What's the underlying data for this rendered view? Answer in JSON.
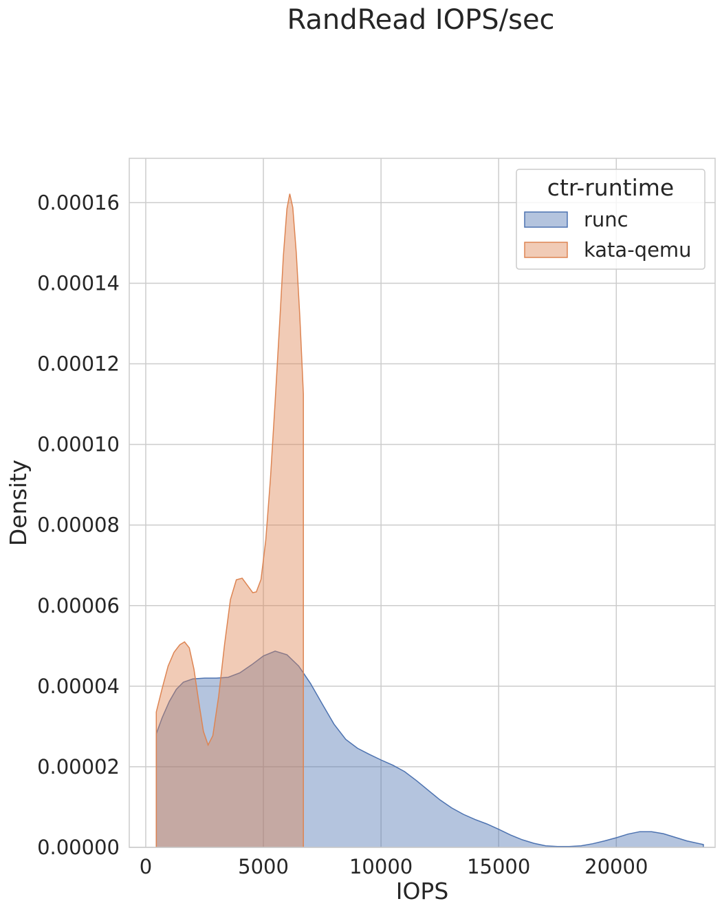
{
  "chart_data": {
    "type": "area",
    "title": "RandRead IOPS/sec",
    "xlabel": "IOPS",
    "ylabel": "Density",
    "xlim": [
      -700,
      24200
    ],
    "ylim": [
      0,
      0.000171
    ],
    "grid": true,
    "legend_placement": "top-right",
    "x_ticks": [
      0,
      5000,
      10000,
      15000,
      20000
    ],
    "x_tick_labels": [
      "0",
      "5000",
      "10000",
      "15000",
      "20000"
    ],
    "y_ticks": [
      0,
      2e-05,
      4e-05,
      6e-05,
      8e-05,
      0.0001,
      0.00012,
      0.00014,
      0.00016
    ],
    "y_tick_labels": [
      "0.00000",
      "0.00002",
      "0.00004",
      "0.00006",
      "0.00008",
      "0.00010",
      "0.00012",
      "0.00014",
      "0.00016"
    ],
    "legend": {
      "title": "ctr-runtime"
    },
    "series": [
      {
        "name": "runc",
        "color": "#4c72b0",
        "points": [
          [
            450,
            0
          ],
          [
            450,
            2.82e-05
          ],
          [
            700,
            3.22e-05
          ],
          [
            1000,
            3.62e-05
          ],
          [
            1300,
            3.92e-05
          ],
          [
            1600,
            4.1e-05
          ],
          [
            2000,
            4.18e-05
          ],
          [
            2500,
            4.2e-05
          ],
          [
            3000,
            4.2e-05
          ],
          [
            3500,
            4.22e-05
          ],
          [
            4000,
            4.33e-05
          ],
          [
            4500,
            4.53e-05
          ],
          [
            5000,
            4.75e-05
          ],
          [
            5500,
            4.87e-05
          ],
          [
            6000,
            4.78e-05
          ],
          [
            6500,
            4.5e-05
          ],
          [
            7000,
            4.07e-05
          ],
          [
            7500,
            3.56e-05
          ],
          [
            8000,
            3.06e-05
          ],
          [
            8500,
            2.68e-05
          ],
          [
            9000,
            2.46e-05
          ],
          [
            9500,
            2.31e-05
          ],
          [
            10000,
            2.17e-05
          ],
          [
            10500,
            2.04e-05
          ],
          [
            11000,
            1.88e-05
          ],
          [
            11500,
            1.66e-05
          ],
          [
            12000,
            1.42e-05
          ],
          [
            12500,
            1.18e-05
          ],
          [
            13000,
            9.8e-06
          ],
          [
            13500,
            8.2e-06
          ],
          [
            14000,
            6.9e-06
          ],
          [
            14500,
            5.8e-06
          ],
          [
            15000,
            4.5e-06
          ],
          [
            15500,
            3.1e-06
          ],
          [
            16000,
            1.9e-06
          ],
          [
            16500,
            1e-06
          ],
          [
            17000,
            4e-07
          ],
          [
            17500,
            2e-07
          ],
          [
            18000,
            2e-07
          ],
          [
            18500,
            4e-07
          ],
          [
            19000,
            9e-07
          ],
          [
            19500,
            1.6e-06
          ],
          [
            20000,
            2.4e-06
          ],
          [
            20500,
            3.3e-06
          ],
          [
            21000,
            3.9e-06
          ],
          [
            21500,
            3.9e-06
          ],
          [
            22000,
            3.4e-06
          ],
          [
            22500,
            2.5e-06
          ],
          [
            23000,
            1.6e-06
          ],
          [
            23700,
            7e-07
          ],
          [
            23700,
            0
          ]
        ]
      },
      {
        "name": "kata-qemu",
        "color": "#dd8452",
        "points": [
          [
            450,
            0
          ],
          [
            450,
            3.36e-05
          ],
          [
            700,
            3.95e-05
          ],
          [
            950,
            4.5e-05
          ],
          [
            1200,
            4.84e-05
          ],
          [
            1450,
            5.03e-05
          ],
          [
            1650,
            5.1e-05
          ],
          [
            1850,
            4.95e-05
          ],
          [
            2050,
            4.42e-05
          ],
          [
            2250,
            3.63e-05
          ],
          [
            2450,
            2.88e-05
          ],
          [
            2650,
            2.54e-05
          ],
          [
            2850,
            2.77e-05
          ],
          [
            3100,
            3.75e-05
          ],
          [
            3350,
            5.04e-05
          ],
          [
            3600,
            6.15e-05
          ],
          [
            3850,
            6.64e-05
          ],
          [
            4100,
            6.68e-05
          ],
          [
            4350,
            6.48e-05
          ],
          [
            4550,
            6.32e-05
          ],
          [
            4700,
            6.34e-05
          ],
          [
            4900,
            6.65e-05
          ],
          [
            5100,
            7.62e-05
          ],
          [
            5300,
            9.15e-05
          ],
          [
            5500,
            0.0001105
          ],
          [
            5700,
            0.000131
          ],
          [
            5850,
            0.0001468
          ],
          [
            6000,
            0.0001585
          ],
          [
            6120,
            0.0001622
          ],
          [
            6250,
            0.0001588
          ],
          [
            6400,
            0.0001475
          ],
          [
            6550,
            0.0001315
          ],
          [
            6700,
            0.0001125
          ],
          [
            6700,
            0
          ]
        ]
      }
    ]
  }
}
